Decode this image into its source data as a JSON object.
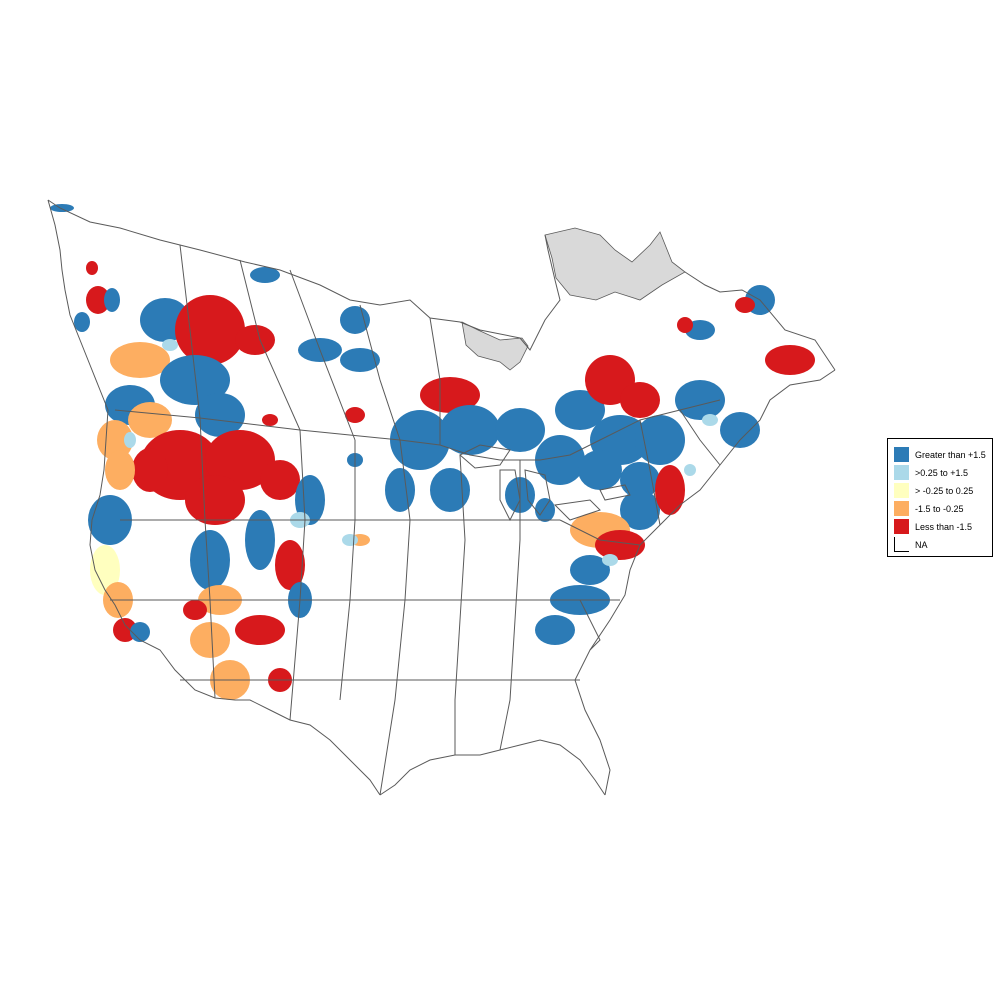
{
  "legend": {
    "items": [
      {
        "label": "Greater than +1.5",
        "color": "#2c7bb6"
      },
      {
        "label": ">0.25 to +1.5",
        "color": "#abd9e9"
      },
      {
        "label": "> -0.25 to 0.25",
        "color": "#ffffbf"
      },
      {
        "label": "-1.5 to -0.25",
        "color": "#fdae61"
      },
      {
        "label": "Less than -1.5",
        "color": "#d7191c"
      },
      {
        "label": "NA",
        "color": "#ffffff"
      }
    ]
  },
  "colors": {
    "outline": "#5a5a5a",
    "na_region": "#d9d9d9",
    "background": "#ffffff"
  }
}
